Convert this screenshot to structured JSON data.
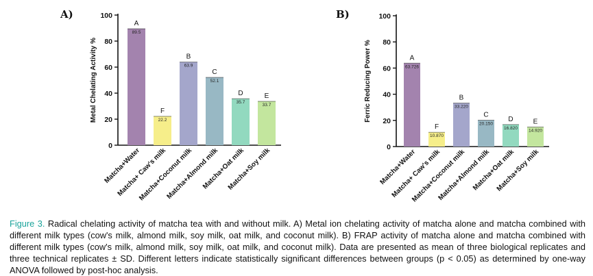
{
  "chart_data": [
    {
      "type": "bar",
      "panel_label": "A)",
      "title": "",
      "xlabel": "",
      "ylabel": "Metal Chelating Activity %",
      "ylim": [
        0,
        100
      ],
      "yticks": [
        "0",
        "20",
        "40",
        "60",
        "80",
        "100"
      ],
      "categories": [
        "Matcha+Water",
        "Matcha+ Caw's milk",
        "Matcha+Coconut milk",
        "Matcha+Almond milk",
        "Matcha+Oat milk",
        "Matcha+Soy milk"
      ],
      "values": [
        89.5,
        22.2,
        63.9,
        52.1,
        35.7,
        33.7
      ],
      "value_labels": [
        "89.5",
        "22.2",
        "63.9",
        "52.1",
        "35.7",
        "33.7"
      ],
      "letters": [
        "A",
        "F",
        "B",
        "C",
        "D",
        "E"
      ],
      "colors": [
        "#a383ae",
        "#f6ee8a",
        "#a4a6cb",
        "#98b8c4",
        "#92d9bf",
        "#c3e69e"
      ]
    },
    {
      "type": "bar",
      "panel_label": "B)",
      "title": "",
      "xlabel": "",
      "ylabel": "Ferric Reducing Power %",
      "ylim": [
        0,
        100
      ],
      "yticks": [
        "0",
        "20",
        "40",
        "60",
        "80",
        "100"
      ],
      "categories": [
        "Matcha+Water",
        "Matcha+ Caw's milk",
        "Matcha+Coconut milk",
        "Matcha+Almond milk",
        "Matcha+Oat milk",
        "Matcha+Soy milk"
      ],
      "values": [
        63.726,
        10.87,
        33.22,
        20.15,
        16.82,
        14.92
      ],
      "value_labels": [
        "63.726",
        "10.870",
        "33.220",
        "20.150",
        "16.820",
        "14.920"
      ],
      "letters": [
        "A",
        "F",
        "B",
        "C",
        "D",
        "E"
      ],
      "colors": [
        "#a383ae",
        "#f6ee8a",
        "#a4a6cb",
        "#98b8c4",
        "#92d9bf",
        "#c3e69e"
      ]
    }
  ],
  "caption": {
    "figure_label": "Figure 3.",
    "text": "Radical chelating activity of matcha tea with and without milk. A) Metal ion chelating activity of matcha alone and matcha combined with different milk types (cow's milk, almond milk, soy milk, oat milk, and coconut milk). B) FRAP activity of matcha alone and matcha combined with different milk types (cow's milk, almond milk, soy milk, oat milk, and coconut milk). Data are presented as mean of three biological replicates and three technical replicates ± SD. Different letters indicate statistically significant differences between groups (p < 0.05) as determined by one-way ANOVA followed by post-hoc analysis."
  }
}
